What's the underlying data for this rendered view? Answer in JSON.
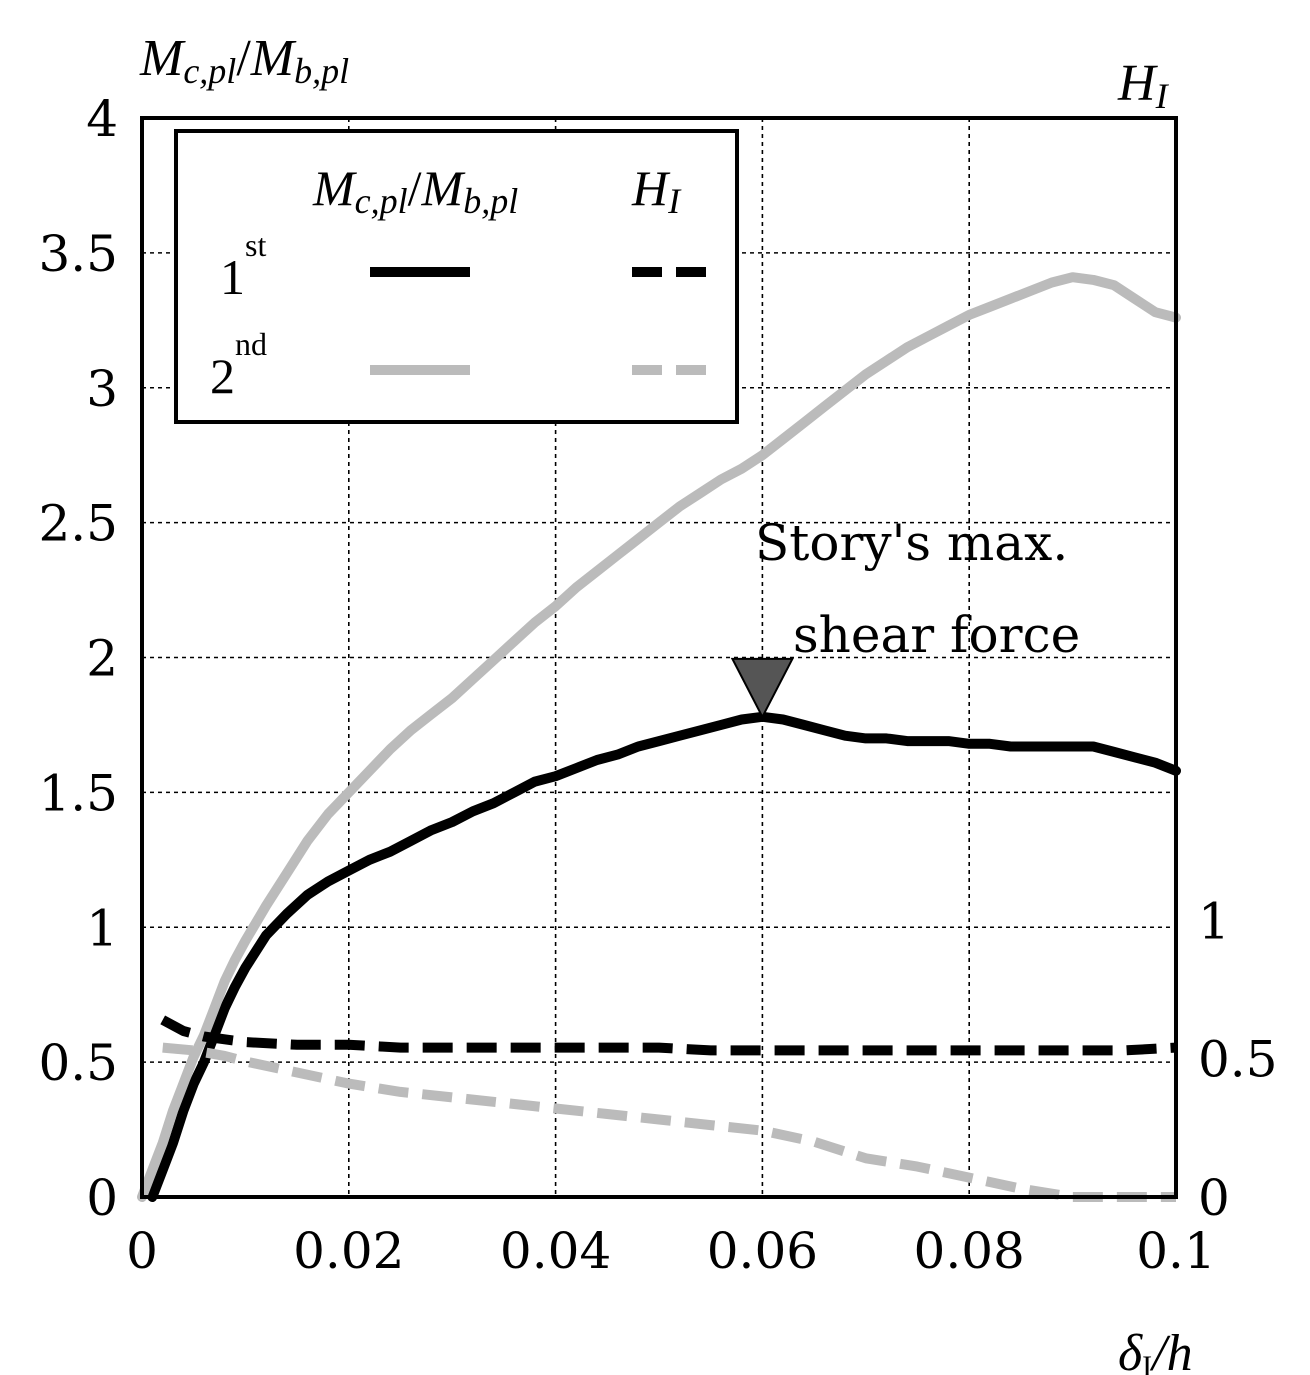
{
  "chart_data": {
    "type": "line",
    "x_axis": {
      "label_main": "δ",
      "label_sub": "I",
      "label_rest": "/h",
      "range": [
        0,
        0.1
      ],
      "ticks": [
        0,
        0.02,
        0.04,
        0.06,
        0.08,
        0.1
      ],
      "tick_labels": [
        "0",
        "0.02",
        "0.04",
        "0.06",
        "0.08",
        "0.1"
      ]
    },
    "y_left": {
      "label_m1": "M",
      "label_s1": "c,pl",
      "label_slash": "/",
      "label_m2": "M",
      "label_s2": "b,pl",
      "range": [
        0,
        4
      ],
      "ticks": [
        0,
        0.5,
        1,
        1.5,
        2,
        2.5,
        3,
        3.5,
        4
      ],
      "tick_labels": [
        "0",
        "0.5",
        "1",
        "1.5",
        "2",
        "2.5",
        "3",
        "3.5",
        "4"
      ]
    },
    "y_right": {
      "label_main": "H",
      "label_sub": "I",
      "range": [
        0,
        3.9
      ],
      "ticks": [
        0,
        0.5,
        1
      ],
      "tick_labels": [
        "0",
        "0.5",
        "1"
      ]
    },
    "grid": true,
    "legend": {
      "position": "top-left",
      "col1_main1": "M",
      "col1_sub1": "c,pl",
      "col1_slash": "/",
      "col1_main2": "M",
      "col1_sub2": "b,pl",
      "col2_main": "H",
      "col2_sub": "I",
      "rows": [
        {
          "base": "1",
          "sup": "st",
          "color": "#000000"
        },
        {
          "base": "2",
          "sup": "nd",
          "color": "#bbbbbb"
        }
      ]
    },
    "annotation": {
      "line1": "Story's max.",
      "line2": "shear force",
      "x": 0.06,
      "y": 1.78,
      "marker_color": "#555555"
    },
    "series": [
      {
        "story": "1st",
        "quantity": "Mc,pl/Mb,pl",
        "axis": "left",
        "style": "solid",
        "color": "#000000",
        "x": [
          0.001,
          0.002,
          0.003,
          0.004,
          0.005,
          0.006,
          0.007,
          0.008,
          0.009,
          0.01,
          0.012,
          0.014,
          0.016,
          0.018,
          0.02,
          0.022,
          0.024,
          0.026,
          0.028,
          0.03,
          0.032,
          0.034,
          0.036,
          0.038,
          0.04,
          0.042,
          0.044,
          0.046,
          0.048,
          0.05,
          0.052,
          0.054,
          0.056,
          0.058,
          0.06,
          0.062,
          0.064,
          0.066,
          0.068,
          0.07,
          0.072,
          0.074,
          0.076,
          0.078,
          0.08,
          0.082,
          0.084,
          0.086,
          0.088,
          0.09,
          0.092,
          0.094,
          0.096,
          0.098,
          0.1
        ],
        "y": [
          0.0,
          0.1,
          0.2,
          0.32,
          0.42,
          0.5,
          0.6,
          0.7,
          0.78,
          0.85,
          0.97,
          1.05,
          1.12,
          1.17,
          1.21,
          1.25,
          1.28,
          1.32,
          1.36,
          1.39,
          1.43,
          1.46,
          1.5,
          1.54,
          1.56,
          1.59,
          1.62,
          1.64,
          1.67,
          1.69,
          1.71,
          1.73,
          1.75,
          1.77,
          1.78,
          1.77,
          1.75,
          1.73,
          1.71,
          1.7,
          1.7,
          1.69,
          1.69,
          1.69,
          1.68,
          1.68,
          1.67,
          1.67,
          1.67,
          1.67,
          1.67,
          1.65,
          1.63,
          1.61,
          1.58
        ]
      },
      {
        "story": "2nd",
        "quantity": "Mc,pl/Mb,pl",
        "axis": "left",
        "style": "solid",
        "color": "#bbbbbb",
        "x": [
          0.0,
          0.001,
          0.002,
          0.003,
          0.004,
          0.005,
          0.006,
          0.007,
          0.008,
          0.009,
          0.01,
          0.012,
          0.014,
          0.016,
          0.018,
          0.02,
          0.022,
          0.024,
          0.026,
          0.028,
          0.03,
          0.032,
          0.034,
          0.036,
          0.038,
          0.04,
          0.042,
          0.044,
          0.046,
          0.048,
          0.05,
          0.052,
          0.054,
          0.056,
          0.058,
          0.06,
          0.062,
          0.064,
          0.066,
          0.068,
          0.07,
          0.072,
          0.074,
          0.076,
          0.078,
          0.08,
          0.082,
          0.084,
          0.086,
          0.088,
          0.09,
          0.092,
          0.094,
          0.096,
          0.098,
          0.1
        ],
        "y": [
          0.0,
          0.1,
          0.2,
          0.32,
          0.42,
          0.52,
          0.6,
          0.7,
          0.8,
          0.88,
          0.95,
          1.08,
          1.2,
          1.32,
          1.42,
          1.5,
          1.58,
          1.66,
          1.73,
          1.79,
          1.85,
          1.92,
          1.99,
          2.06,
          2.13,
          2.19,
          2.26,
          2.32,
          2.38,
          2.44,
          2.5,
          2.56,
          2.61,
          2.66,
          2.7,
          2.75,
          2.81,
          2.87,
          2.93,
          2.99,
          3.05,
          3.1,
          3.15,
          3.19,
          3.23,
          3.27,
          3.3,
          3.33,
          3.36,
          3.39,
          3.41,
          3.4,
          3.38,
          3.33,
          3.28,
          3.26
        ]
      },
      {
        "story": "1st",
        "quantity": "HI",
        "axis": "right",
        "style": "dashed",
        "color": "#000000",
        "x": [
          0.002,
          0.004,
          0.006,
          0.008,
          0.01,
          0.015,
          0.02,
          0.025,
          0.03,
          0.035,
          0.04,
          0.045,
          0.05,
          0.055,
          0.06,
          0.065,
          0.07,
          0.075,
          0.08,
          0.085,
          0.09,
          0.095,
          0.1
        ],
        "y": [
          0.64,
          0.6,
          0.58,
          0.57,
          0.56,
          0.55,
          0.55,
          0.54,
          0.54,
          0.54,
          0.54,
          0.54,
          0.54,
          0.53,
          0.53,
          0.53,
          0.53,
          0.53,
          0.53,
          0.53,
          0.53,
          0.53,
          0.54
        ]
      },
      {
        "story": "2nd",
        "quantity": "HI",
        "axis": "right",
        "style": "dashed",
        "color": "#bbbbbb",
        "x": [
          0.002,
          0.005,
          0.008,
          0.01,
          0.015,
          0.02,
          0.025,
          0.03,
          0.035,
          0.04,
          0.045,
          0.05,
          0.055,
          0.06,
          0.065,
          0.07,
          0.075,
          0.08,
          0.085,
          0.09,
          0.095,
          0.1
        ],
        "y": [
          0.54,
          0.53,
          0.51,
          0.49,
          0.45,
          0.41,
          0.38,
          0.36,
          0.34,
          0.32,
          0.3,
          0.28,
          0.26,
          0.24,
          0.2,
          0.14,
          0.11,
          0.07,
          0.03,
          0.0,
          0.0,
          0.0
        ]
      }
    ]
  }
}
